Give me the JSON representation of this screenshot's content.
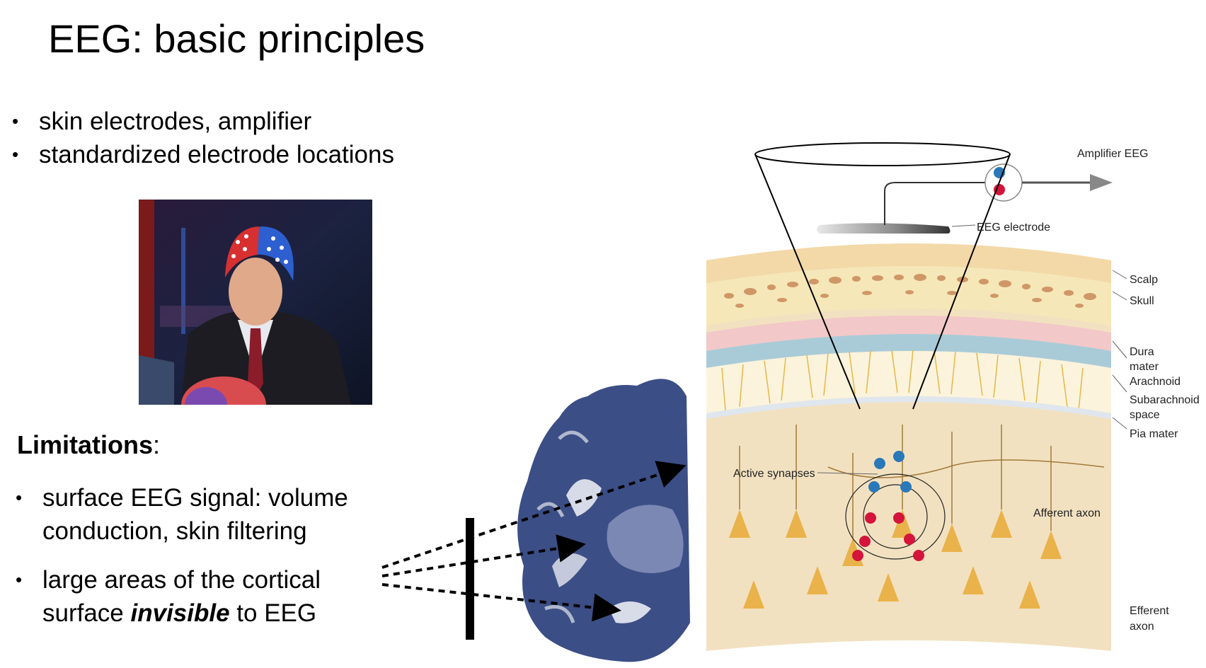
{
  "title": "EEG: basic principles",
  "bullets": [
    "skin electrodes, amplifier",
    "standardized electrode locations"
  ],
  "limitations": {
    "heading": "Limitations",
    "colon": ":",
    "items": [
      {
        "line1": "surface EEG signal: volume",
        "line2": "conduction, skin filtering"
      },
      {
        "line1": "large areas of the cortical",
        "line2_pre": "surface ",
        "line2_em": "invisible",
        "line2_post": " to EEG"
      }
    ]
  },
  "diagram_labels": {
    "amplifier": "Amplifier EEG",
    "electrode": "EEG electrode",
    "scalp": "Scalp",
    "skull": "Skull",
    "dura1": "Dura",
    "dura2": "mater",
    "arachnoid": "Arachnoid",
    "subarachnoid1": "Subarachnoid",
    "subarachnoid2": "space",
    "pia": "Pia mater",
    "active_synapses": "Active synapses",
    "afferent_axon": "Afferent axon",
    "efferent1": "Efferent",
    "efferent2": "axon"
  },
  "colors": {
    "scalp": "#f3d9a8",
    "skull": "#f6e7b8",
    "dura": "#f2c8c8",
    "arachnoid": "#a9cbd8",
    "cortex": "#f2e1c0",
    "neuron": "#e9b24a",
    "positive": "#d4143a",
    "negative": "#2a78b8",
    "brain_tissue": "#3b4e86"
  }
}
